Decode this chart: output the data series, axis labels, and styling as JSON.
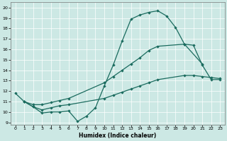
{
  "xlabel": "Humidex (Indice chaleur)",
  "xlim": [
    -0.5,
    23.5
  ],
  "ylim": [
    8.8,
    20.5
  ],
  "xticks": [
    0,
    1,
    2,
    3,
    4,
    5,
    6,
    7,
    8,
    9,
    10,
    11,
    12,
    13,
    14,
    15,
    16,
    17,
    18,
    19,
    20,
    21,
    22,
    23
  ],
  "yticks": [
    9,
    10,
    11,
    12,
    13,
    14,
    15,
    16,
    17,
    18,
    19,
    20
  ],
  "bg_color": "#cce8e4",
  "grid_color": "#b0d8d4",
  "line_color": "#1a6b5e",
  "line1_x": [
    0,
    1,
    2,
    3,
    4,
    5,
    6,
    7,
    8,
    9,
    10,
    11,
    12,
    13,
    14,
    15,
    16,
    17,
    18,
    19,
    21
  ],
  "line1_y": [
    11.8,
    11.0,
    10.5,
    9.9,
    10.0,
    10.0,
    10.1,
    9.1,
    9.6,
    10.4,
    12.5,
    14.5,
    16.8,
    18.9,
    19.3,
    19.55,
    19.7,
    19.2,
    18.1,
    16.5,
    14.6
  ],
  "line2_x": [
    1,
    2,
    3,
    4,
    5,
    6,
    10,
    11,
    12,
    13,
    14,
    15,
    16,
    19,
    20,
    21,
    22,
    23
  ],
  "line2_y": [
    11.0,
    10.7,
    10.7,
    10.9,
    11.1,
    11.3,
    12.8,
    13.4,
    14.0,
    14.6,
    15.2,
    15.9,
    16.3,
    16.5,
    16.4,
    14.5,
    13.1,
    13.1
  ],
  "line3_x": [
    1,
    2,
    3,
    4,
    5,
    6,
    10,
    11,
    12,
    13,
    14,
    15,
    16,
    19,
    20,
    21,
    22,
    23
  ],
  "line3_y": [
    11.0,
    10.5,
    10.2,
    10.4,
    10.6,
    10.7,
    11.3,
    11.6,
    11.9,
    12.2,
    12.5,
    12.8,
    13.1,
    13.5,
    13.5,
    13.4,
    13.3,
    13.2
  ]
}
